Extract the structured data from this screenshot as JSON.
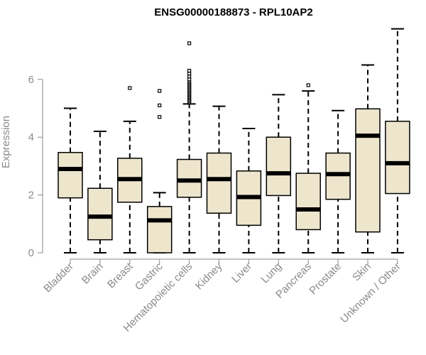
{
  "chart_data": {
    "type": "boxplot",
    "title": "ENSG00000188873 - RPL10AP2",
    "xlabel": "",
    "ylabel": "Expression",
    "ylim": [
      0,
      7.85
    ],
    "yticks": [
      0,
      2,
      4,
      6
    ],
    "box_color": "#ede6cd",
    "categories": [
      "Bladder",
      "Brain",
      "Breast",
      "Gastric",
      "Hematopoietic cells",
      "Kidney",
      "Liver",
      "Lung",
      "Pancreas",
      "Prostate",
      "Skin",
      "Unknown / Other"
    ],
    "boxes": [
      {
        "name": "Bladder",
        "whisker_low": 0,
        "q1": 1.9,
        "median": 2.9,
        "q3": 3.47,
        "whisker_high": 5.0,
        "outliers": []
      },
      {
        "name": "Brain",
        "whisker_low": 0,
        "q1": 0.45,
        "median": 1.25,
        "q3": 2.23,
        "whisker_high": 4.2,
        "outliers": []
      },
      {
        "name": "Breast",
        "whisker_low": 0,
        "q1": 1.75,
        "median": 2.55,
        "q3": 3.27,
        "whisker_high": 4.55,
        "outliers": [
          5.7
        ]
      },
      {
        "name": "Gastric",
        "whisker_low": 0,
        "q1": 0,
        "median": 1.12,
        "q3": 1.6,
        "whisker_high": 2.08,
        "outliers": [
          4.7,
          5.1,
          5.6
        ]
      },
      {
        "name": "Hematopoietic cells",
        "whisker_low": 0,
        "q1": 1.92,
        "median": 2.5,
        "q3": 3.23,
        "whisker_high": 5.15,
        "outliers": [
          5.2,
          5.25,
          5.3,
          5.35,
          5.4,
          5.45,
          5.5,
          5.55,
          5.6,
          5.65,
          5.7,
          5.75,
          5.8,
          5.85,
          5.9,
          6.0,
          6.1,
          6.2,
          6.3,
          7.25
        ]
      },
      {
        "name": "Kidney",
        "whisker_low": 0,
        "q1": 1.37,
        "median": 2.55,
        "q3": 3.45,
        "whisker_high": 5.07,
        "outliers": []
      },
      {
        "name": "Liver",
        "whisker_low": 0,
        "q1": 0.95,
        "median": 1.93,
        "q3": 2.83,
        "whisker_high": 4.3,
        "outliers": []
      },
      {
        "name": "Lung",
        "whisker_low": 0,
        "q1": 1.98,
        "median": 2.75,
        "q3": 4.0,
        "whisker_high": 5.47,
        "outliers": []
      },
      {
        "name": "Pancreas",
        "whisker_low": 0,
        "q1": 0.8,
        "median": 1.5,
        "q3": 2.75,
        "whisker_high": 5.6,
        "outliers": [
          5.8
        ]
      },
      {
        "name": "Prostate",
        "whisker_low": 0,
        "q1": 1.85,
        "median": 2.72,
        "q3": 3.45,
        "whisker_high": 4.92,
        "outliers": []
      },
      {
        "name": "Skin",
        "whisker_low": 0,
        "q1": 0.72,
        "median": 4.05,
        "q3": 4.98,
        "whisker_high": 6.5,
        "outliers": []
      },
      {
        "name": "Unknown / Other",
        "whisker_low": 0,
        "q1": 2.05,
        "median": 3.1,
        "q3": 4.55,
        "whisker_high": 7.75,
        "outliers": []
      }
    ]
  }
}
